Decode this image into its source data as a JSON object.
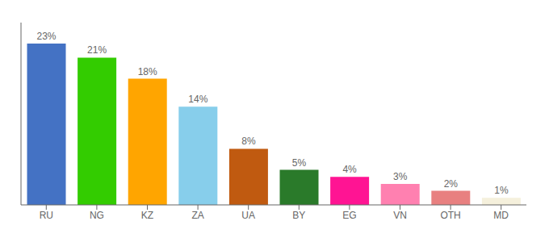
{
  "chart_data": {
    "type": "bar",
    "categories": [
      "RU",
      "NG",
      "KZ",
      "ZA",
      "UA",
      "BY",
      "EG",
      "VN",
      "OTH",
      "MD"
    ],
    "values": [
      23,
      21,
      18,
      14,
      8,
      5,
      4,
      3,
      2,
      1
    ],
    "value_labels": [
      "23%",
      "21%",
      "18%",
      "14%",
      "8%",
      "5%",
      "4%",
      "3%",
      "2%",
      "1%"
    ],
    "colors": [
      "#4472C4",
      "#33CC00",
      "#FFA500",
      "#87CEEB",
      "#C05A10",
      "#2A7A2A",
      "#FF1493",
      "#FF80B0",
      "#E88080",
      "#F5F0DC"
    ],
    "ylim": [
      0,
      26
    ],
    "yticks": [],
    "data_labels": true,
    "tick_labels": "x",
    "grid": false
  }
}
